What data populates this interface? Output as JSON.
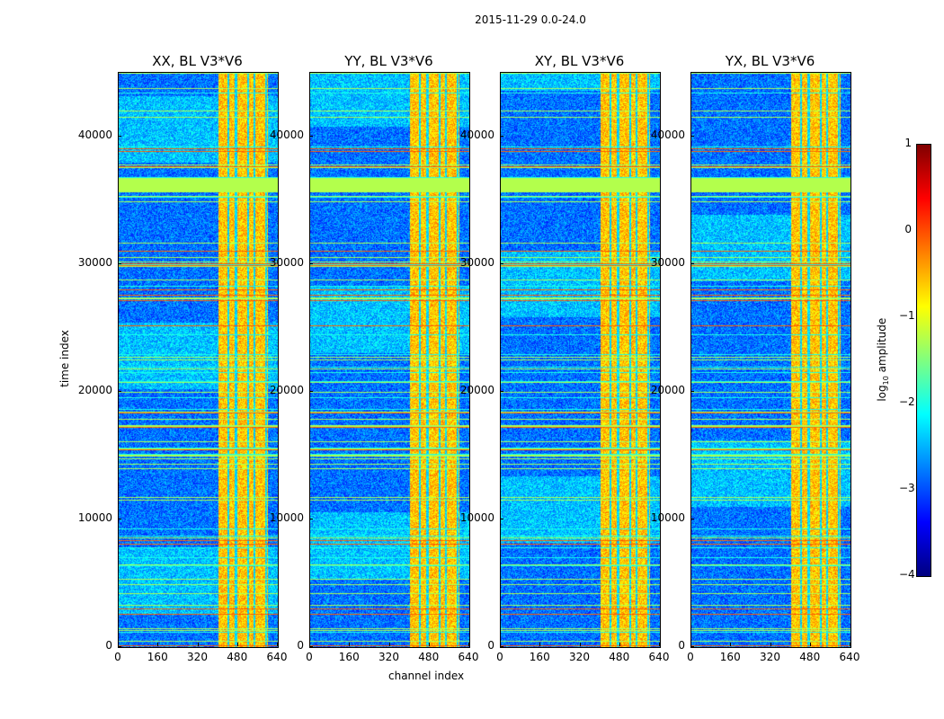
{
  "chart_data": {
    "type": "heatmap",
    "title": "2015-11-29 0.0-24.0",
    "xlabel": "channel index",
    "ylabel": "time index",
    "xlim": [
      0,
      640
    ],
    "ylim": [
      0,
      45000
    ],
    "xticks": [
      "0",
      "160",
      "320",
      "480",
      "640"
    ],
    "yticks": [
      "0",
      "10000",
      "20000",
      "30000",
      "40000"
    ],
    "panels": [
      {
        "title": "XX, BL V3*V6"
      },
      {
        "title": "YY, BL V3*V6"
      },
      {
        "title": "XY, BL V3*V6"
      },
      {
        "title": "YX, BL V3*V6"
      }
    ],
    "colorbar": {
      "label_main": "log",
      "label_sub": "10",
      "label_rest": " amplitude",
      "colormap": "jet",
      "range": [
        -4,
        1
      ],
      "ticks": [
        "1",
        "0",
        "−1",
        "−2",
        "−3",
        "−4"
      ]
    },
    "features": {
      "background_level": -3,
      "bright_channel_range": [
        400,
        600
      ],
      "bright_level": -0.6,
      "flagged_time_range": [
        35700,
        36800
      ],
      "flagged_level": -1.25
    }
  }
}
